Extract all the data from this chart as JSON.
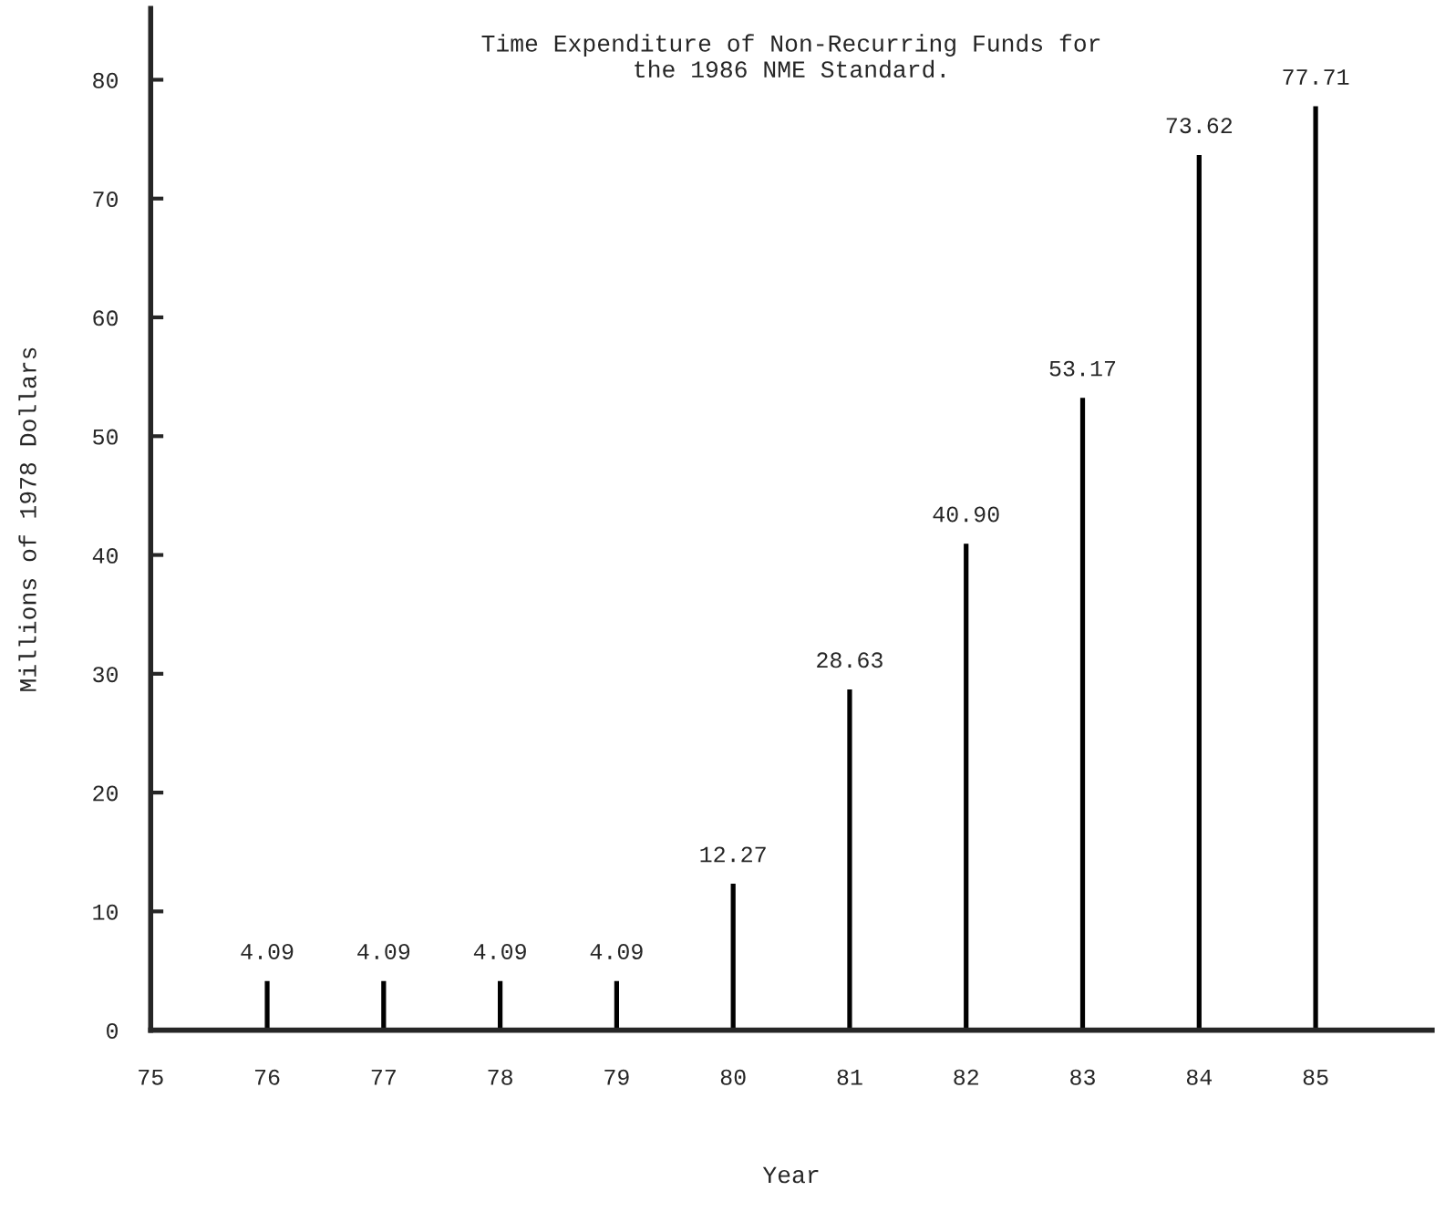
{
  "chart_data": {
    "type": "bar",
    "title": "Time Expenditure of Non-Recurring Funds for\nthe 1986 NME Standard.",
    "xlabel": "Year",
    "ylabel": "Millions of 1978 Dollars",
    "x": [
      76,
      77,
      78,
      79,
      80,
      81,
      82,
      83,
      84,
      85
    ],
    "values": [
      4.09,
      4.09,
      4.09,
      4.09,
      12.27,
      28.63,
      40.9,
      53.17,
      73.62,
      77.71
    ],
    "value_labels": [
      "4.09",
      "4.09",
      "4.09",
      "4.09",
      "12.27",
      "28.63",
      "40.90",
      "53.17",
      "73.62",
      "77.71"
    ],
    "color": "#000000",
    "xlim": [
      75,
      86
    ],
    "xticks": [
      75,
      76,
      77,
      78,
      79,
      80,
      81,
      82,
      83,
      84,
      85
    ],
    "ylim": [
      0,
      86
    ],
    "yticks": [
      0,
      10,
      20,
      30,
      40,
      50,
      60,
      70,
      80
    ],
    "grid": false
  }
}
